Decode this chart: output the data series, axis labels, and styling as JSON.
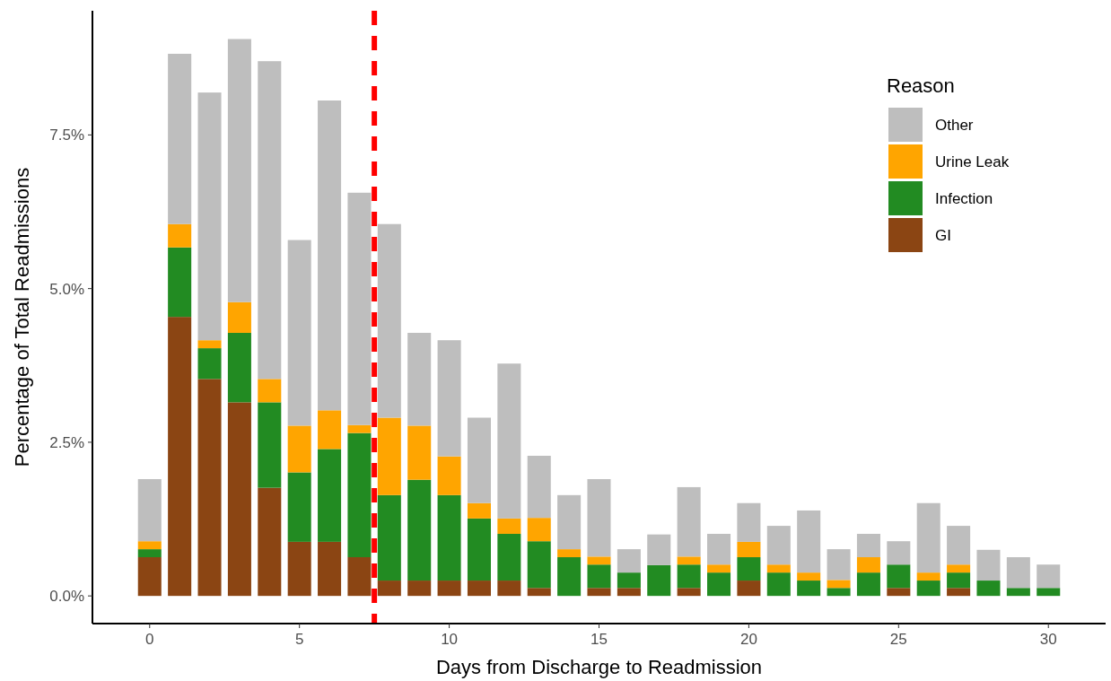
{
  "chart_data": {
    "type": "bar",
    "stacked": true,
    "xlabel": "Days from Discharge to Readmission",
    "ylabel": "Percentage of Total Readmissions",
    "legend_title": "Reason",
    "legend": "top right",
    "grid": false,
    "x": [
      0,
      1,
      2,
      3,
      4,
      5,
      6,
      7,
      8,
      9,
      10,
      11,
      12,
      13,
      14,
      15,
      16,
      17,
      18,
      19,
      20,
      21,
      22,
      23,
      24,
      25,
      26,
      27,
      28,
      29,
      30
    ],
    "xlim": [
      -1.91,
      31.91
    ],
    "xticks": [
      0,
      5,
      10,
      15,
      20,
      25,
      30
    ],
    "ylim": [
      -0.45,
      9.52
    ],
    "yticks": [
      {
        "value": 0,
        "label": "0.0%"
      },
      {
        "value": 2.5,
        "label": "2.5%"
      },
      {
        "value": 5,
        "label": "5.0%"
      },
      {
        "value": 7.5,
        "label": "7.5%"
      }
    ],
    "series": [
      {
        "name": "GI",
        "color": "#8b4513",
        "values": [
          0.63,
          4.54,
          3.53,
          3.15,
          1.76,
          0.88,
          0.88,
          0.63,
          0.25,
          0.25,
          0.25,
          0.25,
          0.25,
          0.13,
          0,
          0.13,
          0.13,
          0,
          0.13,
          0,
          0.25,
          0,
          0,
          0,
          0,
          0.13,
          0,
          0.13,
          0,
          0,
          0
        ]
      },
      {
        "name": "Infection",
        "color": "#228b22",
        "values": [
          0.13,
          1.13,
          0.5,
          1.13,
          1.39,
          1.13,
          1.51,
          2.02,
          1.39,
          1.64,
          1.39,
          1.01,
          0.76,
          0.76,
          0.63,
          0.38,
          0.25,
          0.5,
          0.38,
          0.38,
          0.38,
          0.38,
          0.25,
          0.13,
          0.38,
          0.38,
          0.25,
          0.25,
          0.25,
          0.13,
          0.13
        ]
      },
      {
        "name": "Urine Leak",
        "color": "#ffa500",
        "values": [
          0.13,
          0.38,
          0.13,
          0.5,
          0.38,
          0.76,
          0.63,
          0.13,
          1.26,
          0.88,
          0.63,
          0.25,
          0.25,
          0.38,
          0.13,
          0.13,
          0,
          0,
          0.13,
          0.13,
          0.25,
          0.13,
          0.13,
          0.13,
          0.25,
          0,
          0.13,
          0.13,
          0,
          0,
          0
        ]
      },
      {
        "name": "Other",
        "color": "#bebebe",
        "values": [
          1.01,
          2.77,
          4.03,
          4.28,
          5.17,
          3.02,
          5.04,
          3.78,
          3.15,
          1.51,
          1.89,
          1.39,
          2.52,
          1.01,
          0.88,
          1.26,
          0.38,
          0.5,
          1.13,
          0.5,
          0.63,
          0.63,
          1.01,
          0.5,
          0.38,
          0.38,
          1.13,
          0.63,
          0.5,
          0.5,
          0.38
        ]
      }
    ],
    "ref_lines": [
      {
        "axis": "x",
        "value": 7.5,
        "color": "#ff0000",
        "line_style": "dashed"
      }
    ]
  }
}
